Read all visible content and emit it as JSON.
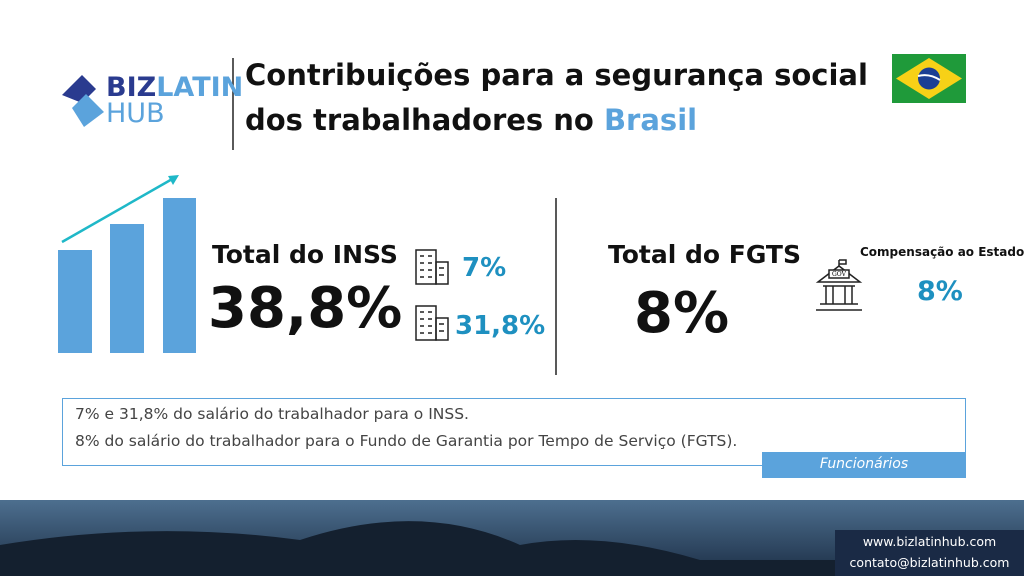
{
  "logo": {
    "word1": "BIZ",
    "word2": "LATIN",
    "word3": "HUB"
  },
  "title": {
    "line1": "Contribuições para a segurança social",
    "line2": "dos trabalhadores no",
    "highlight": "Brasil"
  },
  "inss": {
    "label": "Total do INSS",
    "total": "38,8%",
    "parts": [
      "7%",
      "31,8%"
    ]
  },
  "fgts": {
    "label": "Total do FGTS",
    "total": "8%",
    "icon_label": "GOV",
    "note": "Compensação ao Estado",
    "note_value": "8%"
  },
  "notes": {
    "lines": [
      "7% e 31,8% do salário do trabalhador para o INSS.",
      "8% do salário do trabalhador para o Fundo de Garantia por Tempo de Serviço (FGTS)."
    ],
    "tag": "Funcionários"
  },
  "footer": {
    "website": "www.bizlatinhub.com",
    "email": "contato@bizlatinhub.com"
  }
}
